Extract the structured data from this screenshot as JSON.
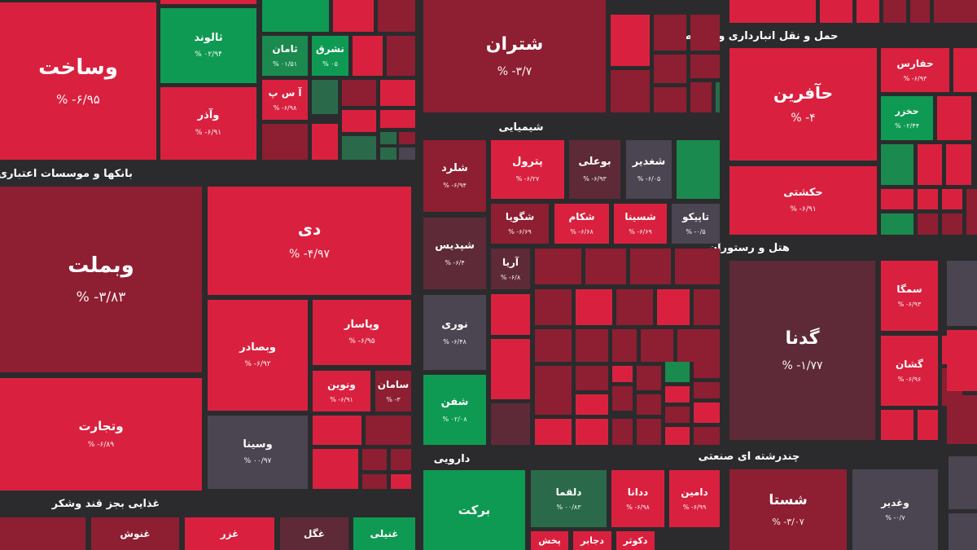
{
  "colors": {
    "background": "#2b2b2d",
    "strong_negative": "#d9213f",
    "negative": "#c0223c",
    "dark_negative": "#8e1e31",
    "neutral_negative": "#5e2a38",
    "gray": "#4a4550",
    "positive": "#0f9a53",
    "light_positive": "#1b8a4e",
    "dark_positive": "#2a6a4a"
  },
  "sectors": [
    {
      "name": "بانکها و موسسات اعتباری"
    },
    {
      "name": "شیمیایی"
    },
    {
      "name": "حمل و نقل انبارداری و ارتباطات"
    },
    {
      "name": "هتل و رستوران"
    },
    {
      "name": "غذایی بجز قند وشکر"
    },
    {
      "name": "دارویی"
    },
    {
      "name": "چندرشته ای صنعتی"
    }
  ],
  "tiles": [
    {
      "symbol": "وساخت",
      "change": "% -۶/۹۵"
    },
    {
      "symbol": "ثالوند",
      "change": "% ۰۲/۹۴"
    },
    {
      "symbol": "وآذر",
      "change": "% -۶/۹۱"
    },
    {
      "symbol": "ثامان",
      "change": "% ۰۱/۵۱"
    },
    {
      "symbol": "نشرق",
      "change": "% ۰۵"
    },
    {
      "symbol": "آ س پ",
      "change": "% -۶/۹۸"
    },
    {
      "symbol": "شتران",
      "change": "% -۳/۷"
    },
    {
      "symbol": "حآفرین",
      "change": "% -۴"
    },
    {
      "symbol": "حفارس",
      "change": "% -۶/۹۳"
    },
    {
      "symbol": "حخزر",
      "change": "% ۰۲/۴۴"
    },
    {
      "symbol": "حکشتی",
      "change": "% -۶/۹۱"
    },
    {
      "symbol": "وبملت",
      "change": "% -۳/۸۳"
    },
    {
      "symbol": "دی",
      "change": "% -۴/۹۷"
    },
    {
      "symbol": "وبصادر",
      "change": "% -۶/۹۲"
    },
    {
      "symbol": "وپاسار",
      "change": "% -۶/۹۵"
    },
    {
      "symbol": "ونوین",
      "change": "% -۶/۹۱"
    },
    {
      "symbol": "سامان",
      "change": "% -۳"
    },
    {
      "symbol": "وتجارت",
      "change": "% -۶/۸۹"
    },
    {
      "symbol": "وسینا",
      "change": "% ۰۰/۹۷"
    },
    {
      "symbol": "شلرد",
      "change": "% -۶/۹۴"
    },
    {
      "symbol": "پترول",
      "change": "% -۶/۲۷"
    },
    {
      "symbol": "بوعلی",
      "change": "% -۶/۹۳"
    },
    {
      "symbol": "شغدیر",
      "change": "% -۶/۰۵"
    },
    {
      "symbol": "شگویا",
      "change": "% -۶/۶۹"
    },
    {
      "symbol": "شکام",
      "change": "% -۶/۶۸"
    },
    {
      "symbol": "شسینا",
      "change": "% -۶/۶۹"
    },
    {
      "symbol": "تاپیکو",
      "change": "% -۰/۵"
    },
    {
      "symbol": "شپدیس",
      "change": "% -۶/۴"
    },
    {
      "symbol": "آریا",
      "change": "% -۶/۸"
    },
    {
      "symbol": "نوری",
      "change": "% -۶/۴۸"
    },
    {
      "symbol": "شفن",
      "change": "% ۰۲/۰۸"
    },
    {
      "symbol": "گدنا",
      "change": "% -۱/۷۷"
    },
    {
      "symbol": "سمگا",
      "change": "% -۶/۹۳"
    },
    {
      "symbol": "گشان",
      "change": "% -۶/۹۶"
    },
    {
      "symbol": "برکت",
      "change": ""
    },
    {
      "symbol": "دلقما",
      "change": "% ۰۰/۸۳"
    },
    {
      "symbol": "ددانا",
      "change": "% -۶/۹۸"
    },
    {
      "symbol": "دامین",
      "change": "% -۶/۹۹"
    },
    {
      "symbol": "شستا",
      "change": "% -۳/۰۷"
    },
    {
      "symbol": "وغدیر",
      "change": "% -۰/۷"
    },
    {
      "symbol": "غنوش",
      "change": ""
    },
    {
      "symbol": "غزر",
      "change": ""
    },
    {
      "symbol": "غگل",
      "change": ""
    },
    {
      "symbol": "غنیلی",
      "change": ""
    },
    {
      "symbol": "پخش",
      "change": ""
    },
    {
      "symbol": "دجابر",
      "change": ""
    },
    {
      "symbol": "دکوثر",
      "change": ""
    }
  ],
  "chart_data": {
    "type": "heatmap",
    "sectors": [
      "بانکها و موسسات اعتباری",
      "شیمیایی",
      "حمل و نقل انبارداری و ارتباطات",
      "هتل و رستوران",
      "غذایی بجز قند وشکر",
      "دارویی",
      "چندرشته ای صنعتی"
    ],
    "series": [
      {
        "symbol": "وساخت",
        "change_pct": -6.95
      },
      {
        "symbol": "ثالوند",
        "change_pct": 2.94
      },
      {
        "symbol": "وآذر",
        "change_pct": -6.91
      },
      {
        "symbol": "شتران",
        "change_pct": -3.7
      },
      {
        "symbol": "حآفرین",
        "change_pct": -4
      },
      {
        "symbol": "حفارس",
        "change_pct": -6.93
      },
      {
        "symbol": "حخزر",
        "change_pct": 2.44
      },
      {
        "symbol": "حکشتی",
        "change_pct": -6.91
      },
      {
        "symbol": "وبملت",
        "change_pct": -3.83
      },
      {
        "symbol": "دی",
        "change_pct": -4.97
      },
      {
        "symbol": "وبصادر",
        "change_pct": -6.92
      },
      {
        "symbol": "وپاسار",
        "change_pct": -6.95
      },
      {
        "symbol": "ونوین",
        "change_pct": -6.91
      },
      {
        "symbol": "سامان",
        "change_pct": -3
      },
      {
        "symbol": "وتجارت",
        "change_pct": -6.89
      },
      {
        "symbol": "شلرد",
        "change_pct": -6.94
      },
      {
        "symbol": "پترول",
        "change_pct": -6.27
      },
      {
        "symbol": "بوعلی",
        "change_pct": -6.93
      },
      {
        "symbol": "شپدیس",
        "change_pct": -6.4
      },
      {
        "symbol": "نوری",
        "change_pct": -6.48
      },
      {
        "symbol": "شفن",
        "change_pct": 2.08
      },
      {
        "symbol": "گدنا",
        "change_pct": -1.77
      },
      {
        "symbol": "سمگا",
        "change_pct": -6.93
      },
      {
        "symbol": "گشان",
        "change_pct": -6.96
      },
      {
        "symbol": "دلقما",
        "change_pct": 0.83
      },
      {
        "symbol": "ددانا",
        "change_pct": -6.98
      },
      {
        "symbol": "دامین",
        "change_pct": -6.99
      },
      {
        "symbol": "شستا",
        "change_pct": -3.07
      },
      {
        "symbol": "وغدیر",
        "change_pct": -0.7
      }
    ]
  }
}
